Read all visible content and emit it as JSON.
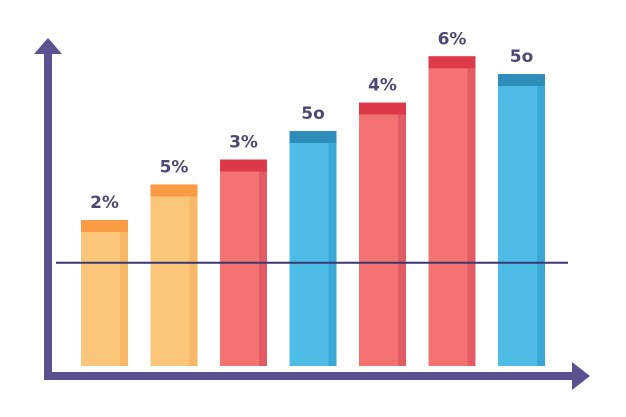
{
  "chart_data": {
    "type": "bar",
    "title": "",
    "xlabel": "",
    "ylabel": "",
    "grid": false,
    "ylim": [
      0,
      100
    ],
    "reference_line": 29,
    "categories": [
      "",
      "",
      "",
      "",
      "",
      "",
      ""
    ],
    "values": [
      41,
      51,
      58,
      66,
      74,
      87,
      82
    ],
    "labels": [
      "2%",
      "5%",
      "3%",
      "5o",
      "4%",
      "6%",
      "5o"
    ],
    "colors": [
      {
        "body": "#f9c67a",
        "cap": "#fb9b46",
        "shade": "#f5b767"
      },
      {
        "body": "#f9c67a",
        "cap": "#fb9b46",
        "shade": "#f5b767"
      },
      {
        "body": "#f47272",
        "cap": "#dc3a49",
        "shade": "#e45c63"
      },
      {
        "body": "#4dbde8",
        "cap": "#2f8dbb",
        "shade": "#3aa7d6"
      },
      {
        "body": "#f47272",
        "cap": "#dc3a49",
        "shade": "#e45c63"
      },
      {
        "body": "#f47272",
        "cap": "#dc3a49",
        "shade": "#e45c63"
      },
      {
        "body": "#4dbde8",
        "cap": "#2f8dbb",
        "shade": "#3aa7d6"
      }
    ],
    "label_color": "#4b4a73",
    "axis_color": "#5a5290",
    "line_color": "#3a3870"
  }
}
